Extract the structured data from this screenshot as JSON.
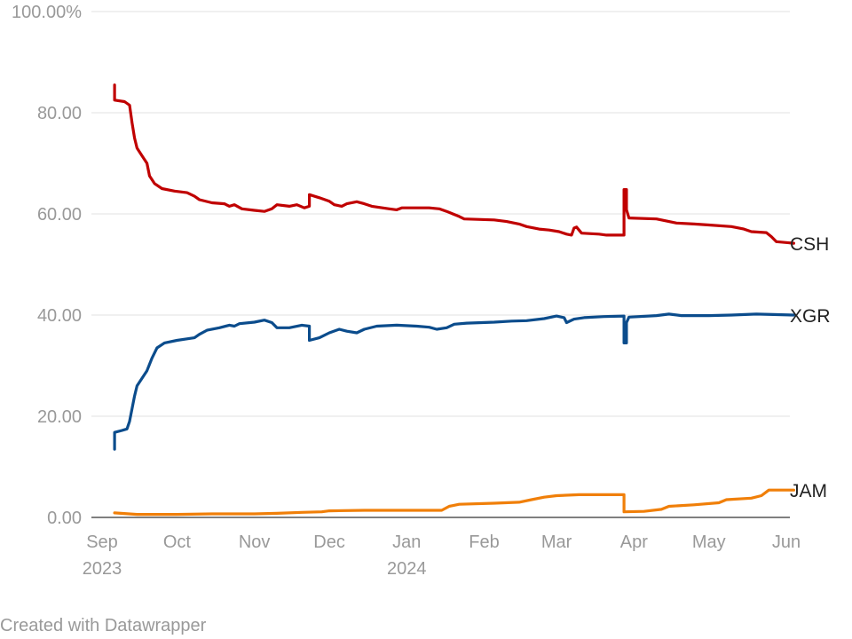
{
  "chart_data": {
    "type": "line",
    "y_unit_suffix": "%",
    "ylim": [
      0,
      100
    ],
    "y_ticks": [
      0,
      20,
      40,
      60,
      80,
      100
    ],
    "y_tick_labels": [
      "0.00",
      "20.00",
      "40.00",
      "60.00",
      "80.00",
      "100.00%"
    ],
    "xlim": [
      "2023-09-01",
      "2024-06-01"
    ],
    "x_ticks": [
      {
        "date": "2023-09-01",
        "label": "Sep",
        "year": "2023"
      },
      {
        "date": "2023-10-01",
        "label": "Oct",
        "year": ""
      },
      {
        "date": "2023-11-01",
        "label": "Nov",
        "year": ""
      },
      {
        "date": "2023-12-01",
        "label": "Dec",
        "year": ""
      },
      {
        "date": "2024-01-01",
        "label": "Jan",
        "year": "2024"
      },
      {
        "date": "2024-02-01",
        "label": "Feb",
        "year": ""
      },
      {
        "date": "2024-03-01",
        "label": "Mar",
        "year": ""
      },
      {
        "date": "2024-04-01",
        "label": "Apr",
        "year": ""
      },
      {
        "date": "2024-05-01",
        "label": "May",
        "year": ""
      },
      {
        "date": "2024-06-01",
        "label": "Jun",
        "year": ""
      }
    ],
    "grid": "horizontal",
    "legend": "direct labels at line ends (right)",
    "series": [
      {
        "name": "CSH",
        "color": "#c00000",
        "points": [
          [
            "2023-09-06",
            85.5
          ],
          [
            "2023-09-06",
            82.5
          ],
          [
            "2023-09-10",
            82.2
          ],
          [
            "2023-09-12",
            81.5
          ],
          [
            "2023-09-13",
            78.0
          ],
          [
            "2023-09-14",
            75.0
          ],
          [
            "2023-09-15",
            73.0
          ],
          [
            "2023-09-17",
            71.5
          ],
          [
            "2023-09-19",
            70.0
          ],
          [
            "2023-09-20",
            67.5
          ],
          [
            "2023-09-22",
            66.0
          ],
          [
            "2023-09-25",
            65.0
          ],
          [
            "2023-09-30",
            64.5
          ],
          [
            "2023-10-05",
            64.2
          ],
          [
            "2023-10-08",
            63.5
          ],
          [
            "2023-10-10",
            62.8
          ],
          [
            "2023-10-15",
            62.2
          ],
          [
            "2023-10-20",
            62.0
          ],
          [
            "2023-10-22",
            61.5
          ],
          [
            "2023-10-24",
            61.8
          ],
          [
            "2023-10-27",
            61.0
          ],
          [
            "2023-11-01",
            60.7
          ],
          [
            "2023-11-05",
            60.5
          ],
          [
            "2023-11-08",
            61.0
          ],
          [
            "2023-11-10",
            61.8
          ],
          [
            "2023-11-15",
            61.5
          ],
          [
            "2023-11-18",
            61.8
          ],
          [
            "2023-11-21",
            61.2
          ],
          [
            "2023-11-23",
            61.5
          ],
          [
            "2023-11-23",
            63.8
          ],
          [
            "2023-11-27",
            63.2
          ],
          [
            "2023-12-01",
            62.5
          ],
          [
            "2023-12-03",
            61.8
          ],
          [
            "2023-12-06",
            61.5
          ],
          [
            "2023-12-08",
            62.0
          ],
          [
            "2023-12-12",
            62.4
          ],
          [
            "2023-12-15",
            62.0
          ],
          [
            "2023-12-18",
            61.5
          ],
          [
            "2023-12-25",
            61.0
          ],
          [
            "2023-12-28",
            60.8
          ],
          [
            "2023-12-30",
            61.2
          ],
          [
            "2024-01-10",
            61.2
          ],
          [
            "2024-01-14",
            61.0
          ],
          [
            "2024-01-17",
            60.5
          ],
          [
            "2024-01-22",
            59.5
          ],
          [
            "2024-01-24",
            59.0
          ],
          [
            "2024-02-05",
            58.8
          ],
          [
            "2024-02-10",
            58.5
          ],
          [
            "2024-02-15",
            58.0
          ],
          [
            "2024-02-18",
            57.5
          ],
          [
            "2024-02-23",
            57.0
          ],
          [
            "2024-02-27",
            56.8
          ],
          [
            "2024-03-02",
            56.5
          ],
          [
            "2024-03-05",
            56.0
          ],
          [
            "2024-03-07",
            55.8
          ],
          [
            "2024-03-08",
            57.2
          ],
          [
            "2024-03-09",
            57.4
          ],
          [
            "2024-03-11",
            56.2
          ],
          [
            "2024-03-18",
            56.0
          ],
          [
            "2024-03-21",
            55.8
          ],
          [
            "2024-03-28",
            55.8
          ],
          [
            "2024-03-28",
            64.8
          ],
          [
            "2024-03-29",
            64.8
          ],
          [
            "2024-03-29",
            60.8
          ],
          [
            "2024-03-30",
            59.2
          ],
          [
            "2024-04-10",
            59.0
          ],
          [
            "2024-04-15",
            58.5
          ],
          [
            "2024-04-18",
            58.2
          ],
          [
            "2024-04-25",
            58.0
          ],
          [
            "2024-05-01",
            57.8
          ],
          [
            "2024-05-10",
            57.5
          ],
          [
            "2024-05-15",
            57.0
          ],
          [
            "2024-05-18",
            56.5
          ],
          [
            "2024-05-24",
            56.3
          ],
          [
            "2024-05-26",
            55.5
          ],
          [
            "2024-05-28",
            54.5
          ],
          [
            "2024-06-04",
            54.2
          ]
        ]
      },
      {
        "name": "XGR",
        "color": "#0b4c8c",
        "points": [
          [
            "2023-09-06",
            13.5
          ],
          [
            "2023-09-06",
            16.8
          ],
          [
            "2023-09-09",
            17.2
          ],
          [
            "2023-09-11",
            17.5
          ],
          [
            "2023-09-12",
            19.0
          ],
          [
            "2023-09-13",
            21.5
          ],
          [
            "2023-09-14",
            24.0
          ],
          [
            "2023-09-15",
            26.0
          ],
          [
            "2023-09-17",
            27.5
          ],
          [
            "2023-09-19",
            29.0
          ],
          [
            "2023-09-21",
            31.5
          ],
          [
            "2023-09-23",
            33.5
          ],
          [
            "2023-09-26",
            34.5
          ],
          [
            "2023-10-01",
            35.0
          ],
          [
            "2023-10-05",
            35.3
          ],
          [
            "2023-10-08",
            35.5
          ],
          [
            "2023-10-10",
            36.2
          ],
          [
            "2023-10-13",
            37.0
          ],
          [
            "2023-10-18",
            37.5
          ],
          [
            "2023-10-22",
            38.0
          ],
          [
            "2023-10-24",
            37.8
          ],
          [
            "2023-10-26",
            38.3
          ],
          [
            "2023-11-01",
            38.6
          ],
          [
            "2023-11-05",
            39.0
          ],
          [
            "2023-11-08",
            38.5
          ],
          [
            "2023-11-10",
            37.5
          ],
          [
            "2023-11-15",
            37.5
          ],
          [
            "2023-11-20",
            38.0
          ],
          [
            "2023-11-23",
            37.8
          ],
          [
            "2023-11-23",
            35.0
          ],
          [
            "2023-11-27",
            35.5
          ],
          [
            "2023-12-01",
            36.5
          ],
          [
            "2023-12-05",
            37.2
          ],
          [
            "2023-12-08",
            36.8
          ],
          [
            "2023-12-12",
            36.5
          ],
          [
            "2023-12-15",
            37.2
          ],
          [
            "2023-12-20",
            37.8
          ],
          [
            "2023-12-28",
            38.0
          ],
          [
            "2024-01-05",
            37.8
          ],
          [
            "2024-01-10",
            37.6
          ],
          [
            "2024-01-13",
            37.2
          ],
          [
            "2024-01-17",
            37.5
          ],
          [
            "2024-01-20",
            38.2
          ],
          [
            "2024-01-25",
            38.4
          ],
          [
            "2024-02-05",
            38.6
          ],
          [
            "2024-02-12",
            38.8
          ],
          [
            "2024-02-18",
            38.9
          ],
          [
            "2024-02-25",
            39.3
          ],
          [
            "2024-03-01",
            39.8
          ],
          [
            "2024-03-04",
            39.5
          ],
          [
            "2024-03-05",
            38.5
          ],
          [
            "2024-03-08",
            39.2
          ],
          [
            "2024-03-12",
            39.5
          ],
          [
            "2024-03-20",
            39.7
          ],
          [
            "2024-03-28",
            39.8
          ],
          [
            "2024-03-28",
            34.5
          ],
          [
            "2024-03-29",
            34.5
          ],
          [
            "2024-03-29",
            38.5
          ],
          [
            "2024-03-30",
            39.6
          ],
          [
            "2024-04-10",
            39.9
          ],
          [
            "2024-04-15",
            40.2
          ],
          [
            "2024-04-20",
            39.9
          ],
          [
            "2024-05-01",
            39.9
          ],
          [
            "2024-05-10",
            40.0
          ],
          [
            "2024-05-20",
            40.2
          ],
          [
            "2024-06-04",
            40.0
          ]
        ]
      },
      {
        "name": "JAM",
        "color": "#f07f09",
        "points": [
          [
            "2023-09-06",
            0.9
          ],
          [
            "2023-09-15",
            0.6
          ],
          [
            "2023-10-01",
            0.6
          ],
          [
            "2023-10-15",
            0.7
          ],
          [
            "2023-11-01",
            0.7
          ],
          [
            "2023-11-10",
            0.8
          ],
          [
            "2023-11-20",
            1.0
          ],
          [
            "2023-11-28",
            1.1
          ],
          [
            "2023-12-01",
            1.3
          ],
          [
            "2023-12-15",
            1.4
          ],
          [
            "2024-01-01",
            1.4
          ],
          [
            "2024-01-15",
            1.4
          ],
          [
            "2024-01-18",
            2.2
          ],
          [
            "2024-01-22",
            2.6
          ],
          [
            "2024-02-05",
            2.8
          ],
          [
            "2024-02-15",
            3.0
          ],
          [
            "2024-02-20",
            3.5
          ],
          [
            "2024-02-25",
            4.0
          ],
          [
            "2024-03-01",
            4.3
          ],
          [
            "2024-03-10",
            4.5
          ],
          [
            "2024-03-28",
            4.5
          ],
          [
            "2024-03-28",
            1.1
          ],
          [
            "2024-04-05",
            1.2
          ],
          [
            "2024-04-12",
            1.6
          ],
          [
            "2024-04-15",
            2.2
          ],
          [
            "2024-04-25",
            2.5
          ],
          [
            "2024-05-05",
            2.9
          ],
          [
            "2024-05-08",
            3.5
          ],
          [
            "2024-05-18",
            3.8
          ],
          [
            "2024-05-22",
            4.3
          ],
          [
            "2024-05-25",
            5.4
          ],
          [
            "2024-06-04",
            5.4
          ]
        ]
      }
    ]
  },
  "credit": "Created with Datawrapper"
}
